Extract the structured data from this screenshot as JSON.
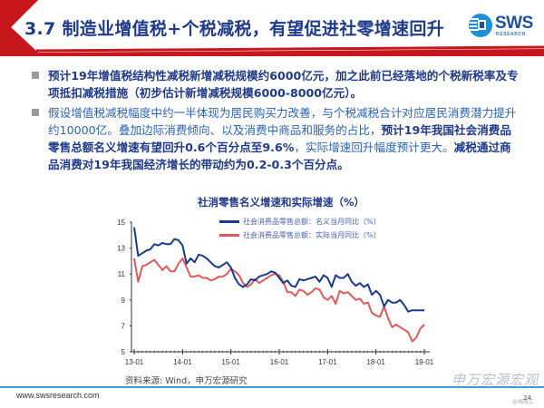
{
  "header": {
    "title": "3.7 制造业增值税+个税减税，有望促进社零增速回升",
    "logo_text": "SWS",
    "logo_subtext": "RESEARCH",
    "accent_color": "#c8161d",
    "title_color": "#1f3a8a"
  },
  "bullets": [
    {
      "text": "预计19年增值税结构性减税新增减税规模约6000亿元，加之此前已经落地的个税新税率及专项抵扣减税措施（初步估计新增减税规模6000-8000亿元）。"
    },
    {
      "part1": "假设增值税减税幅度中约一半体现为居民购买力改善，与个税减税合计对应居民消费潜力提升约10000亿。叠加边际消费倾向、以及消费中商品和服务的占比，",
      "part2": "预计19年我国社会消费品零售总额名义增速有望回升0.6个百分点至9.6%",
      "part3": "，实际增速回升幅度预计更大。",
      "part4": "减税通过商品消费对19年我国经济增长的带动约为0.2-0.3个百分点。"
    }
  ],
  "chart_data": {
    "type": "line",
    "title": "社消零售名义增速和实际增速（%）",
    "xlabel": "",
    "ylabel": "",
    "ylim": [
      5,
      15
    ],
    "yticks": [
      5,
      7,
      9,
      11,
      13,
      15
    ],
    "xticks": [
      "13-01",
      "14-01",
      "15-01",
      "16-01",
      "17-01",
      "18-01",
      "19-01"
    ],
    "grid": false,
    "legend_position": "top-right",
    "x_start": "2013-01",
    "x_end": "2019-01",
    "series": [
      {
        "name": "社会消费品零售总额：名义当月同比（%）",
        "color": "#1a3a8c",
        "values": [
          14.6,
          12.4,
          12.6,
          12.8,
          12.9,
          13.3,
          13.2,
          13.4,
          13.3,
          13.3,
          13.7,
          13.6,
          13.2,
          11.8,
          12.2,
          11.9,
          12.5,
          12.4,
          12.2,
          11.9,
          11.6,
          11.5,
          11.7,
          11.9,
          11.5,
          10.7,
          10.2,
          10.0,
          10.2,
          10.6,
          10.5,
          10.8,
          10.9,
          11.0,
          11.2,
          11.1,
          10.7,
          10.3,
          10.5,
          10.1,
          10.0,
          10.6,
          10.5,
          10.6,
          10.7,
          10.8,
          10.4,
          10.9,
          10.7,
          10.0,
          10.9,
          10.7,
          10.7,
          11.0,
          10.4,
          10.1,
          10.3,
          10.0,
          10.2,
          9.4,
          9.7,
          9.4,
          8.5,
          9.0,
          8.8,
          8.8,
          9.0,
          8.6,
          8.1,
          8.2,
          8.2,
          8.2,
          8.2
        ],
        "final_value": 8.2
      },
      {
        "name": "社会消费品零售总额：实际当月同比（%）",
        "color": "#e05a5a",
        "values": [
          12.2,
          10.4,
          11.6,
          11.7,
          11.9,
          12.1,
          11.7,
          11.3,
          11.6,
          11.2,
          11.2,
          11.8,
          12.2,
          11.5,
          10.8,
          10.8,
          10.9,
          10.7,
          10.7,
          10.5,
          10.6,
          10.8,
          10.8,
          11.0,
          11.4,
          11.2,
          10.9,
          10.3,
          10.0,
          10.2,
          10.6,
          10.3,
          10.5,
          10.7,
          10.9,
          11.0,
          10.9,
          10.4,
          9.6,
          9.6,
          9.3,
          9.8,
          9.7,
          9.4,
          9.6,
          9.9,
          9.8,
          9.2,
          9.0,
          9.3,
          8.7,
          9.7,
          9.5,
          9.6,
          9.3,
          9.0,
          9.1,
          8.7,
          8.8,
          8.0,
          7.8,
          7.7,
          8.5,
          7.6,
          6.9,
          7.1,
          6.9,
          6.7,
          6.5,
          5.8,
          6.1,
          6.8,
          7.1
        ],
        "final_value": 7.1
      }
    ]
  },
  "source": "资料来源: Wind，申万宏源研究",
  "footer": {
    "url": "www.swsresearch.com",
    "page_number": "24",
    "watermark": "申万宏源宏观",
    "watermark_small": "@格隆汇"
  }
}
